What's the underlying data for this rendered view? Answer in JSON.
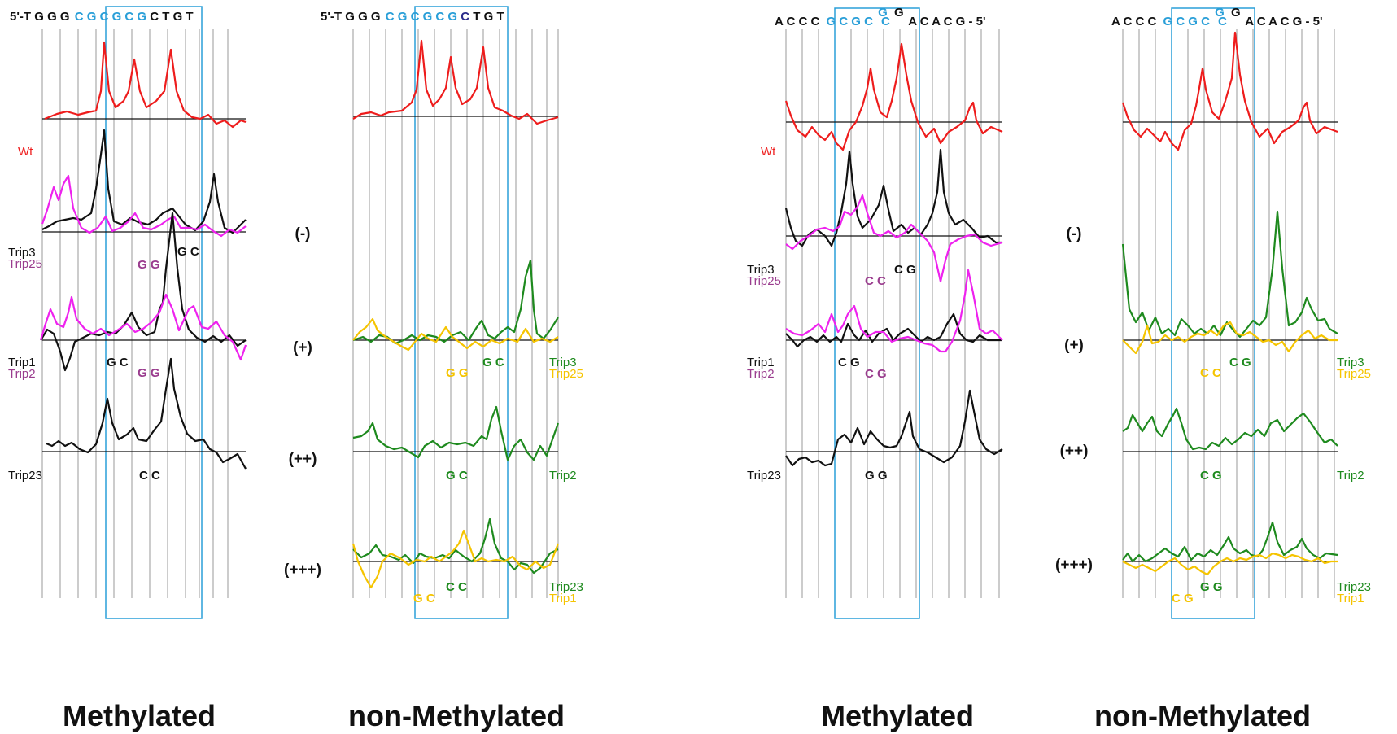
{
  "colors": {
    "red": "#ee1c1c",
    "black": "#111111",
    "magenta": "#ee22ee",
    "purple": "#9a3c8e",
    "green": "#1e8a1e",
    "yellow": "#f5c400",
    "blue": "#2a9fd8",
    "grid": "#9a9a9a"
  },
  "panels": [
    {
      "seq_left": "5'-T G G G",
      "seq_box": "C G C G C G",
      "seq_right": "C T G T",
      "seq_right_color": "black",
      "levels": [
        {
          "lines": [
            {
              "name": "Wt",
              "color": "red"
            }
          ]
        },
        {
          "lines": [
            {
              "name": "Trip3",
              "color": "black"
            },
            {
              "name": "Trip25",
              "color": "purple"
            }
          ],
          "ann": [
            {
              "text": "G C",
              "color": "black"
            },
            {
              "text": "G G",
              "color": "purple"
            }
          ]
        },
        {
          "lines": [
            {
              "name": "Trip1",
              "color": "black"
            },
            {
              "name": "Trip2",
              "color": "purple"
            }
          ],
          "ann": [
            {
              "text": "G C",
              "color": "black"
            },
            {
              "text": "G G",
              "color": "purple"
            }
          ]
        },
        {
          "lines": [
            {
              "name": "Trip23",
              "color": "black"
            }
          ],
          "ann": [
            {
              "text": "C C",
              "color": "black"
            }
          ]
        }
      ]
    },
    {
      "seq_left": "5'-T G G G",
      "seq_box": "C G C G C G",
      "seq_right": "C T G T",
      "seq_right_color": "navy",
      "levels": [
        {},
        {},
        {
          "lines": [
            {
              "name": "Trip3",
              "color": "green"
            },
            {
              "name": "Trip25",
              "color": "yellow"
            }
          ],
          "ann": [
            {
              "text": "G C",
              "color": "green"
            },
            {
              "text": "G G",
              "color": "yellow"
            }
          ]
        },
        {
          "lines": [
            {
              "name": "Trip2",
              "color": "green"
            }
          ],
          "ann": [
            {
              "text": "G C",
              "color": "green"
            }
          ]
        },
        {
          "lines": [
            {
              "name": "Trip23",
              "color": "green"
            },
            {
              "name": "Trip1",
              "color": "yellow"
            }
          ],
          "ann": [
            {
              "text": "C C",
              "color": "green"
            },
            {
              "text": "G C",
              "color": "yellow"
            }
          ]
        }
      ]
    },
    {
      "seq_left": "A C C C",
      "seq_box": "G C G C",
      "seq_sup": "G",
      "seq_box_end": "C",
      "seq_after": "G",
      "seq_right": "A C A C G - 5'",
      "levels": [
        {
          "lines": [
            {
              "name": "Wt",
              "color": "red"
            }
          ]
        },
        {
          "lines": [
            {
              "name": "Trip3",
              "color": "black"
            },
            {
              "name": "Trip25",
              "color": "purple"
            }
          ],
          "ann": [
            {
              "text": "C G",
              "color": "black"
            },
            {
              "text": "C C",
              "color": "purple"
            }
          ]
        },
        {
          "lines": [
            {
              "name": "Trip1",
              "color": "black"
            },
            {
              "name": "Trip2",
              "color": "purple"
            }
          ],
          "ann": [
            {
              "text": "C G",
              "color": "black"
            },
            {
              "text": "C G",
              "color": "purple"
            }
          ]
        },
        {
          "lines": [
            {
              "name": "Trip23",
              "color": "black"
            }
          ],
          "ann": [
            {
              "text": "G G",
              "color": "black"
            }
          ]
        }
      ]
    },
    {
      "seq_left": "A C C C",
      "seq_box": "G C G C",
      "seq_sup": "G",
      "seq_box_end": "C",
      "seq_after": "G",
      "seq_right": "A C A C G - 5'",
      "levels": [
        {},
        {},
        {
          "lines": [
            {
              "name": "Trip3",
              "color": "green"
            },
            {
              "name": "Trip25",
              "color": "yellow"
            }
          ],
          "ann": [
            {
              "text": "C G",
              "color": "green"
            },
            {
              "text": "C C",
              "color": "yellow"
            }
          ]
        },
        {
          "lines": [
            {
              "name": "Trip2",
              "color": "green"
            }
          ],
          "ann": [
            {
              "text": "C G",
              "color": "green"
            }
          ]
        },
        {
          "lines": [
            {
              "name": "Trip23",
              "color": "green"
            },
            {
              "name": "Trip1",
              "color": "yellow"
            }
          ],
          "ann": [
            {
              "text": "G G",
              "color": "green"
            },
            {
              "text": "C G",
              "color": "yellow"
            }
          ]
        }
      ]
    }
  ],
  "levels": [
    "(-)",
    "(+)",
    "(++)",
    "(+++)"
  ],
  "titles": [
    "Methylated",
    "non-Methylated",
    "Methylated",
    "non-Methylated"
  ]
}
